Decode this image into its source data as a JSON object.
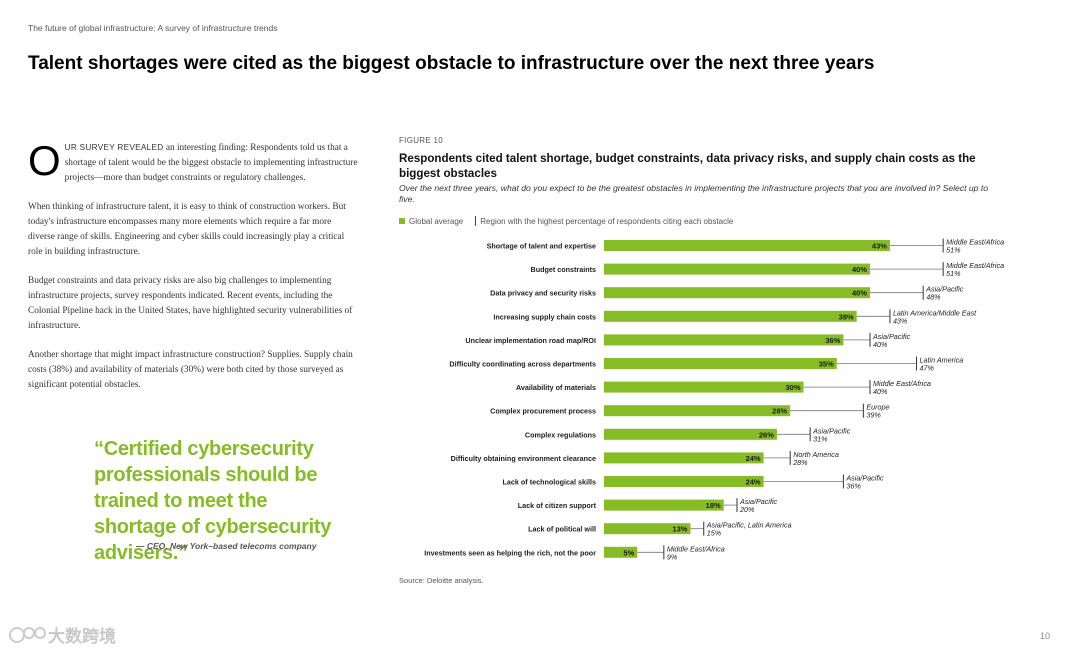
{
  "header": {
    "subtitle": "The future of global infrastructure: A survey of infrastructure trends"
  },
  "title": "Talent shortages were cited as the biggest obstacle to infrastructure over the next three years",
  "body": {
    "dropcap": "O",
    "lead_caps": "UR SURVEY REVEALED",
    "p1_rest": " an interesting finding: Respondents told us that a shortage of talent would be the biggest obstacle to implementing infrastructure projects—more than budget constraints or regulatory challenges.",
    "p2": "When thinking of infrastructure talent, it is easy to think of construction workers. But today's infrastructure encompasses many more elements which require a far more diverse range of skills. Engineering and cyber skills could increasingly play a critical role in building infrastructure.",
    "p3": "Budget constraints and data privacy risks are also big challenges to implementing infrastructure projects, survey respondents indicated. Recent events, including the Colonial Pipeline hack in the United States, have highlighted security vulnerabilities of infrastructure.",
    "p4": "Another shortage that might impact infrastructure construction? Supplies. Supply chain costs (38%) and availability of materials (30%) were both cited by those surveyed as significant potential obstacles."
  },
  "quote": {
    "text": "“Certified cybersecurity professionals should be trained to meet the shortage of cybersecurity advisers.”",
    "attribution": "— CEO, New York–based telecoms company"
  },
  "figure": {
    "label": "FIGURE 10",
    "title": "Respondents cited talent shortage, budget constraints, data privacy risks, and supply chain costs as the biggest obstacles",
    "subtitle": "Over the next three years, what do you expect to be the greatest obstacles in implementing the infrastructure projects that you are involved in? Select up to five.",
    "legend_global": "Global average",
    "legend_region": "Region with the highest percentage of respondents citing each obstacle",
    "source": "Source: Deloitte analysis."
  },
  "chart_data": {
    "type": "bar",
    "orientation": "horizontal",
    "title": "Respondents cited talent shortage, budget constraints, data privacy risks, and supply chain costs as the biggest obstacles",
    "categories": [
      "Shortage of talent and expertise",
      "Budget constraints",
      "Data privacy and security risks",
      "Increasing supply chain costs",
      "Unclear implementation road map/ROI",
      "Difficulty coordinating across departments",
      "Availability of materials",
      "Complex procurement process",
      "Complex regulations",
      "Difficulty obtaining environment clearance",
      "Lack of technological skills",
      "Lack of citizen support",
      "Lack of political will",
      "Investments seen as helping the rich, not the poor"
    ],
    "series": [
      {
        "name": "Global average",
        "values": [
          43,
          40,
          40,
          38,
          36,
          35,
          30,
          28,
          26,
          24,
          24,
          18,
          13,
          5
        ],
        "color": "#86bc25"
      },
      {
        "name": "Region with the highest percentage of respondents citing each obstacle",
        "values": [
          51,
          51,
          48,
          43,
          40,
          47,
          40,
          39,
          31,
          28,
          36,
          20,
          15,
          9
        ]
      }
    ],
    "regions": [
      "Middle East/Africa",
      "Middle East/Africa",
      "Asia/Pacific",
      "Latin America/Middle East",
      "Asia/Pacific",
      "Latin America",
      "Middle East/Africa",
      "Europe",
      "Asia/Pacific",
      "North America",
      "Asia/Pacific",
      "Asia/Pacific",
      "Asia/Pacific, Latin America",
      "Middle East/Africa"
    ],
    "value_suffix": "%",
    "xlim": [
      0,
      55
    ]
  },
  "footer": {
    "logo_text": "大数跨境",
    "page_number": "10"
  }
}
